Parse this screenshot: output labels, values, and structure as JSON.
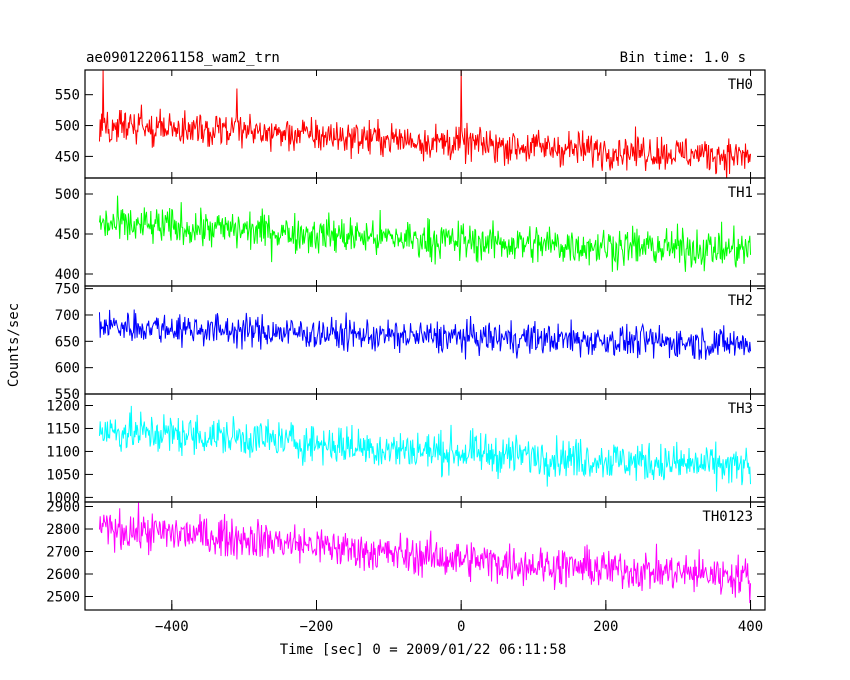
{
  "figure": {
    "title_left": "ae090122061158_wam2_trn",
    "title_right": "Bin time: 1.0 s",
    "ylabel": "Counts/sec",
    "xlabel": "Time [sec] 0 = 2009/01/22 06:11:58"
  },
  "chart_data": {
    "type": "line",
    "title": "ae090122061158_wam2_trn",
    "subtitle": "Bin time: 1.0 s",
    "xlabel": "Time [sec] 0 = 2009/01/22 06:11:58",
    "ylabel": "Counts/sec",
    "xlim": [
      -520,
      420
    ],
    "xticks": [
      -400,
      -200,
      0,
      200,
      400
    ],
    "xtick_labels": [
      "−400",
      "−200",
      "0",
      "200",
      "400"
    ],
    "x_start": -500,
    "x_end": 400,
    "bin_time": 1.0,
    "series": [
      {
        "name": "TH0",
        "color": "#ff0000",
        "ylim": [
          415,
          590
        ],
        "yticks": [
          450,
          500,
          550
        ],
        "trend": [
          [
            -500,
            500
          ],
          [
            -300,
            490
          ],
          [
            -100,
            478
          ],
          [
            100,
            465
          ],
          [
            400,
            450
          ]
        ],
        "amplitude": 55,
        "spikes": [
          [
            -495,
            590
          ],
          [
            -310,
            560
          ],
          [
            0,
            590
          ]
        ]
      },
      {
        "name": "TH1",
        "color": "#00ff00",
        "ylim": [
          385,
          520
        ],
        "yticks": [
          400,
          450,
          500
        ],
        "trend": [
          [
            -500,
            462
          ],
          [
            -300,
            455
          ],
          [
            -100,
            445
          ],
          [
            100,
            437
          ],
          [
            400,
            430
          ]
        ],
        "amplitude": 48,
        "spikes": []
      },
      {
        "name": "TH2",
        "color": "#0000ff",
        "ylim": [
          550,
          755
        ],
        "yticks": [
          550,
          600,
          650,
          700,
          750
        ],
        "trend": [
          [
            -500,
            680
          ],
          [
            -300,
            670
          ],
          [
            -100,
            660
          ],
          [
            100,
            655
          ],
          [
            400,
            645
          ]
        ],
        "amplitude": 60,
        "spikes": []
      },
      {
        "name": "TH3",
        "color": "#00ffff",
        "ylim": [
          990,
          1225
        ],
        "yticks": [
          1000,
          1050,
          1100,
          1150,
          1200
        ],
        "trend": [
          [
            -500,
            1145
          ],
          [
            -300,
            1130
          ],
          [
            -100,
            1105
          ],
          [
            100,
            1090
          ],
          [
            400,
            1065
          ]
        ],
        "amplitude": 85,
        "spikes": []
      },
      {
        "name": "TH0123",
        "color": "#ff00ff",
        "ylim": [
          2440,
          2920
        ],
        "yticks": [
          2500,
          2600,
          2700,
          2800,
          2900
        ],
        "trend": [
          [
            -500,
            2800
          ],
          [
            -300,
            2760
          ],
          [
            -100,
            2690
          ],
          [
            100,
            2640
          ],
          [
            400,
            2590
          ]
        ],
        "amplitude": 170,
        "spikes": []
      }
    ]
  }
}
